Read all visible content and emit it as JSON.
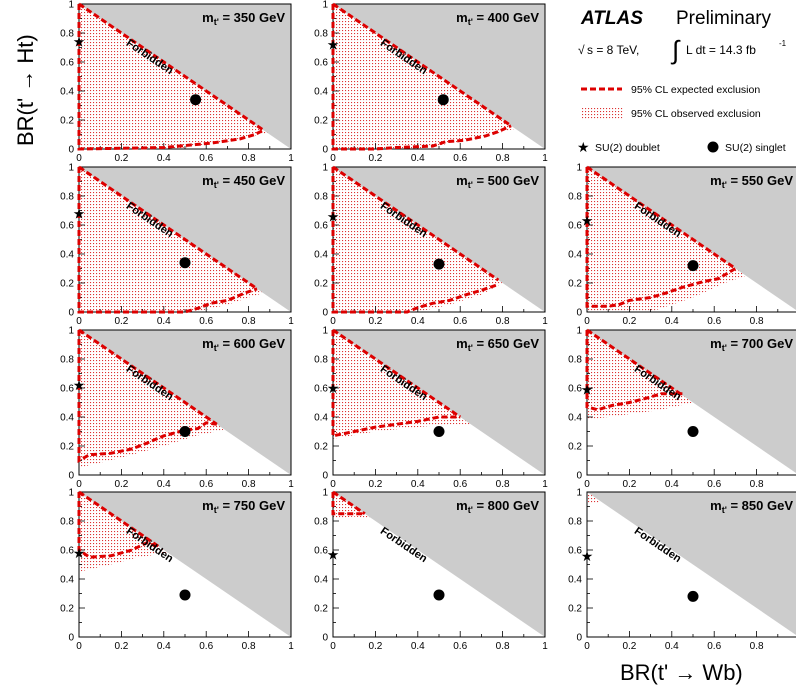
{
  "header": {
    "experiment": "ATLAS",
    "status": "Preliminary",
    "sqrt_s": "s = 8 TeV,",
    "lumi": "L dt = 14.3 fb",
    "lumi_exp": "-1"
  },
  "legend": {
    "expected": "95% CL expected exclusion",
    "observed": "95% CL observed exclusion",
    "doublet": "SU(2) doublet",
    "singlet": "SU(2) singlet"
  },
  "axes": {
    "xlabel": "BR(t' → Wb)",
    "ylabel": "BR(t' → Ht)",
    "ticks": [
      "0",
      "0.2",
      "0.4",
      "0.6",
      "0.8",
      "1"
    ],
    "xlim": [
      0,
      1
    ],
    "ylim": [
      0,
      1
    ]
  },
  "forbidden_label": "Forbidden",
  "colors": {
    "forbidden": "#cccccc",
    "expected": "#dd0000",
    "observed_fill": "#e05555"
  },
  "chart_data": [
    {
      "type": "scatter",
      "mass": "m",
      "mass_sub": "t'",
      "mass_val": " = 350 GeV",
      "doublet": [
        0,
        0.74
      ],
      "singlet": [
        0.55,
        0.34
      ],
      "expected": [
        [
          0,
          1
        ],
        [
          0,
          0
        ],
        [
          0.4,
          0.01
        ],
        [
          0.47,
          0.02
        ],
        [
          0.62,
          0.04
        ],
        [
          0.67,
          0.05
        ],
        [
          0.76,
          0.07
        ],
        [
          0.83,
          0.1
        ],
        [
          0.87,
          0.13
        ]
      ],
      "observed": [
        [
          0,
          1
        ],
        [
          0,
          0
        ],
        [
          0.45,
          0
        ],
        [
          0.6,
          0.03
        ],
        [
          0.75,
          0.06
        ],
        [
          0.85,
          0.1
        ],
        [
          0.89,
          0.11
        ]
      ]
    },
    {
      "type": "scatter",
      "mass": "m",
      "mass_sub": "t'",
      "mass_val": " = 400 GeV",
      "doublet": [
        0,
        0.72
      ],
      "singlet": [
        0.52,
        0.34
      ],
      "expected": [
        [
          0,
          1
        ],
        [
          0,
          0
        ],
        [
          0.2,
          0
        ],
        [
          0.3,
          0.01
        ],
        [
          0.47,
          0.02
        ],
        [
          0.53,
          0.05
        ],
        [
          0.62,
          0.06
        ],
        [
          0.72,
          0.09
        ],
        [
          0.78,
          0.12
        ],
        [
          0.84,
          0.16
        ]
      ],
      "observed": [
        [
          0,
          1
        ],
        [
          0,
          0
        ],
        [
          0.4,
          0
        ],
        [
          0.6,
          0.05
        ],
        [
          0.75,
          0.1
        ],
        [
          0.86,
          0.14
        ]
      ]
    },
    {
      "type": "scatter",
      "mass": "m",
      "mass_sub": "t'",
      "mass_val": " = 450 GeV",
      "doublet": [
        0,
        0.68
      ],
      "singlet": [
        0.5,
        0.34
      ],
      "expected": [
        [
          0,
          1
        ],
        [
          0,
          0
        ],
        [
          0.5,
          0
        ],
        [
          0.57,
          0.03
        ],
        [
          0.62,
          0.06
        ],
        [
          0.7,
          0.08
        ],
        [
          0.75,
          0.11
        ],
        [
          0.78,
          0.13
        ],
        [
          0.84,
          0.16
        ]
      ],
      "observed": [
        [
          0,
          1
        ],
        [
          0,
          0
        ],
        [
          0.55,
          0
        ],
        [
          0.7,
          0.05
        ],
        [
          0.8,
          0.1
        ],
        [
          0.87,
          0.13
        ]
      ]
    },
    {
      "type": "scatter",
      "mass": "m",
      "mass_sub": "t'",
      "mass_val": " = 500 GeV",
      "doublet": [
        0,
        0.66
      ],
      "singlet": [
        0.5,
        0.33
      ],
      "expected": [
        [
          0,
          1
        ],
        [
          0,
          0
        ],
        [
          0.35,
          0
        ],
        [
          0.4,
          0.03
        ],
        [
          0.47,
          0.06
        ],
        [
          0.55,
          0.08
        ],
        [
          0.63,
          0.12
        ],
        [
          0.7,
          0.15
        ],
        [
          0.78,
          0.19
        ]
      ],
      "observed": [
        [
          0,
          1
        ],
        [
          0,
          0
        ],
        [
          0.4,
          0
        ],
        [
          0.55,
          0.05
        ],
        [
          0.7,
          0.12
        ],
        [
          0.8,
          0.2
        ]
      ]
    },
    {
      "type": "scatter",
      "mass": "m",
      "mass_sub": "t'",
      "mass_val": " = 550 GeV",
      "doublet": [
        0,
        0.63
      ],
      "singlet": [
        0.5,
        0.32
      ],
      "expected": [
        [
          0,
          1
        ],
        [
          0,
          0.04
        ],
        [
          0.1,
          0.04
        ],
        [
          0.15,
          0.05
        ],
        [
          0.2,
          0.08
        ],
        [
          0.3,
          0.1
        ],
        [
          0.37,
          0.13
        ],
        [
          0.45,
          0.17
        ],
        [
          0.55,
          0.21
        ],
        [
          0.62,
          0.23
        ],
        [
          0.7,
          0.3
        ]
      ],
      "observed": [
        [
          0,
          1
        ],
        [
          0,
          0
        ],
        [
          0.3,
          0
        ],
        [
          0.5,
          0.1
        ],
        [
          0.65,
          0.2
        ],
        [
          0.75,
          0.25
        ]
      ]
    },
    {
      "type": "scatter",
      "mass": "m",
      "mass_sub": "t'",
      "mass_val": " = 600 GeV",
      "doublet": [
        0,
        0.62
      ],
      "singlet": [
        0.5,
        0.3
      ],
      "expected": [
        [
          0,
          1
        ],
        [
          0,
          0.1
        ],
        [
          0.05,
          0.14
        ],
        [
          0.15,
          0.15
        ],
        [
          0.25,
          0.18
        ],
        [
          0.32,
          0.22
        ],
        [
          0.4,
          0.27
        ],
        [
          0.5,
          0.31
        ],
        [
          0.56,
          0.32
        ],
        [
          0.6,
          0.36
        ],
        [
          0.65,
          0.35
        ]
      ],
      "observed": [
        [
          0,
          1
        ],
        [
          0,
          0.05
        ],
        [
          0.2,
          0.12
        ],
        [
          0.4,
          0.2
        ],
        [
          0.55,
          0.27
        ],
        [
          0.68,
          0.31
        ]
      ]
    },
    {
      "type": "scatter",
      "mass": "m",
      "mass_sub": "t'",
      "mass_val": " = 650 GeV",
      "doublet": [
        0,
        0.6
      ],
      "singlet": [
        0.5,
        0.3
      ],
      "expected": [
        [
          0,
          1
        ],
        [
          0,
          0.27
        ],
        [
          0.1,
          0.3
        ],
        [
          0.2,
          0.33
        ],
        [
          0.3,
          0.35
        ],
        [
          0.4,
          0.37
        ],
        [
          0.5,
          0.4
        ],
        [
          0.6,
          0.4
        ]
      ],
      "observed": [
        [
          0,
          1
        ],
        [
          0,
          0.25
        ],
        [
          0.2,
          0.3
        ],
        [
          0.4,
          0.33
        ],
        [
          0.55,
          0.35
        ],
        [
          0.65,
          0.35
        ]
      ]
    },
    {
      "type": "scatter",
      "mass": "m",
      "mass_sub": "t'",
      "mass_val": " = 700 GeV",
      "doublet": [
        0,
        0.59
      ],
      "singlet": [
        0.5,
        0.3
      ],
      "expected": [
        [
          0,
          1
        ],
        [
          0,
          0.47
        ],
        [
          0.05,
          0.45
        ],
        [
          0.12,
          0.48
        ],
        [
          0.2,
          0.5
        ],
        [
          0.28,
          0.53
        ],
        [
          0.35,
          0.56
        ],
        [
          0.45,
          0.56
        ]
      ],
      "observed": [
        [
          0,
          1
        ],
        [
          0,
          0.38
        ],
        [
          0.2,
          0.42
        ],
        [
          0.35,
          0.45
        ],
        [
          0.5,
          0.5
        ]
      ]
    },
    {
      "type": "scatter",
      "mass": "m",
      "mass_sub": "t'",
      "mass_val": " = 750 GeV",
      "doublet": [
        0,
        0.58
      ],
      "singlet": [
        0.5,
        0.29
      ],
      "expected": [
        [
          0,
          1
        ],
        [
          0,
          0.6
        ],
        [
          0.05,
          0.55
        ],
        [
          0.15,
          0.56
        ],
        [
          0.25,
          0.6
        ],
        [
          0.32,
          0.65
        ],
        [
          0.38,
          0.62
        ]
      ],
      "observed": [
        [
          0,
          1
        ],
        [
          0,
          0.45
        ],
        [
          0.15,
          0.5
        ],
        [
          0.28,
          0.55
        ],
        [
          0.42,
          0.58
        ]
      ]
    },
    {
      "type": "scatter",
      "mass": "m",
      "mass_sub": "t'",
      "mass_val": " = 800 GeV",
      "doublet": [
        0,
        0.57
      ],
      "singlet": [
        0.5,
        0.29
      ],
      "expected": [
        [
          0,
          1
        ],
        [
          0,
          0.85
        ],
        [
          0.05,
          0.85
        ],
        [
          0.15,
          0.85
        ]
      ],
      "observed": [
        [
          0,
          1
        ],
        [
          0,
          0.82
        ],
        [
          0.1,
          0.83
        ],
        [
          0.18,
          0.82
        ]
      ]
    },
    {
      "type": "scatter",
      "mass": "m",
      "mass_sub": "t'",
      "mass_val": " = 850 GeV",
      "doublet": [
        0,
        0.56
      ],
      "singlet": [
        0.5,
        0.28
      ],
      "expected": [],
      "observed": [
        [
          0,
          1
        ],
        [
          0,
          0.92
        ],
        [
          0.06,
          0.92
        ]
      ]
    }
  ]
}
